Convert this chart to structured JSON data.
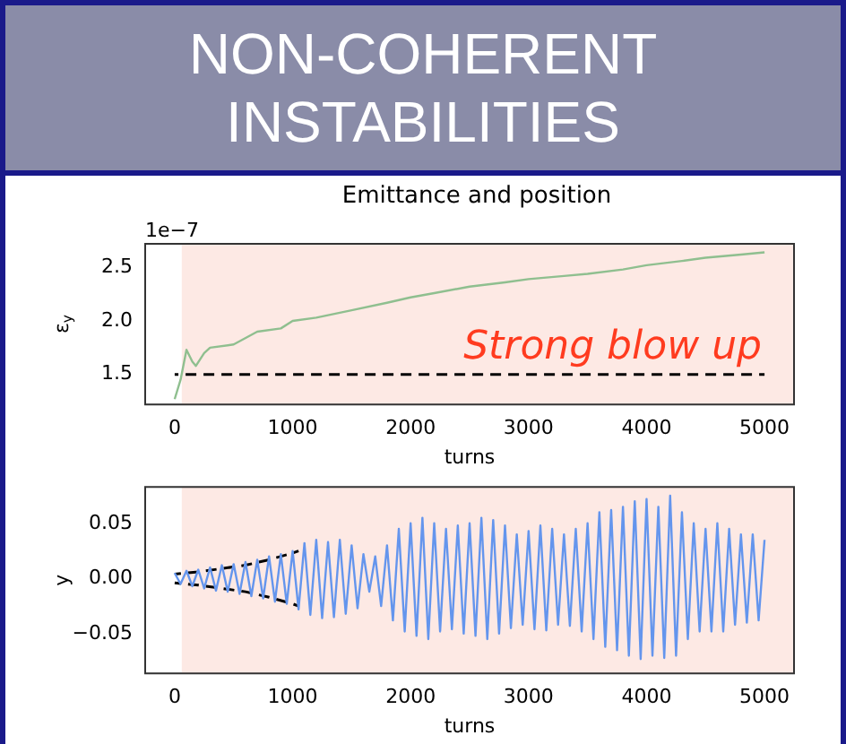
{
  "chart_data": [
    {
      "type": "line",
      "title": "NON-COHERENT INSTABILITIES",
      "subtitle": "Emittance and position",
      "xlabel": "turns",
      "ylabel": "ε$_{y}$",
      "annotations": [
        "1e−7",
        "Strong blow up"
      ],
      "marker": "none",
      "legend": false,
      "grid": false,
      "xlim": [
        -250,
        5250
      ],
      "xticks": [
        0,
        1000,
        2000,
        3000,
        4000,
        5000
      ],
      "ylim": [
        1.22,
        2.72
      ],
      "yticks": [
        {
          "value": 1.5,
          "label": "1.5"
        },
        {
          "value": 2.0,
          "label": "2.0"
        },
        {
          "value": 2.5,
          "label": "2.5"
        }
      ],
      "bands": [
        {
          "axis": "x",
          "from": 60,
          "to": 5250,
          "color": "#fde9e4"
        }
      ],
      "series": [
        {
          "color": "#8fbf8f",
          "x": [
            0,
            50,
            100,
            150,
            180,
            250,
            300,
            500,
            700,
            900,
            1000,
            1200,
            1500,
            1800,
            2000,
            2200,
            2500,
            2800,
            3000,
            3300,
            3500,
            3800,
            4000,
            4300,
            4500,
            4800,
            5000
          ],
          "values": [
            1.27,
            1.45,
            1.73,
            1.62,
            1.58,
            1.7,
            1.75,
            1.78,
            1.9,
            1.93,
            2.0,
            2.03,
            2.1,
            2.17,
            2.22,
            2.26,
            2.32,
            2.36,
            2.39,
            2.42,
            2.44,
            2.48,
            2.52,
            2.56,
            2.59,
            2.62,
            2.64
          ]
        },
        {
          "color": "#000000",
          "line_style": "dashed",
          "x": [
            0,
            5000
          ],
          "values": [
            1.5,
            1.5
          ]
        }
      ]
    },
    {
      "type": "line",
      "xlabel": "turns",
      "ylabel": "y",
      "marker": "none",
      "legend": false,
      "grid": false,
      "xlim": [
        -250,
        5250
      ],
      "xticks": [
        0,
        1000,
        2000,
        3000,
        4000,
        5000
      ],
      "ylim": [
        -0.086,
        0.083
      ],
      "yticks": [
        {
          "value": -0.05,
          "label": "−0.05"
        },
        {
          "value": 0,
          "label": "0.00"
        },
        {
          "value": 0.05,
          "label": "0.05"
        }
      ],
      "bands": [
        {
          "axis": "x",
          "from": 60,
          "to": 5250,
          "color": "#fde9e4"
        }
      ],
      "series": [
        {
          "color": "#6495ed",
          "x": [
            0,
            50,
            100,
            150,
            200,
            250,
            300,
            350,
            400,
            450,
            500,
            550,
            600,
            650,
            700,
            750,
            800,
            850,
            900,
            950,
            1000,
            1050,
            1100,
            1150,
            1200,
            1250,
            1300,
            1350,
            1400,
            1450,
            1500,
            1550,
            1600,
            1650,
            1700,
            1750,
            1800,
            1850,
            1900,
            1950,
            2000,
            2050,
            2100,
            2150,
            2200,
            2250,
            2300,
            2350,
            2400,
            2450,
            2500,
            2550,
            2600,
            2650,
            2700,
            2750,
            2800,
            2850,
            2900,
            2950,
            3000,
            3050,
            3100,
            3150,
            3200,
            3250,
            3300,
            3350,
            3400,
            3450,
            3500,
            3550,
            3600,
            3650,
            3700,
            3750,
            3800,
            3850,
            3900,
            3950,
            4000,
            4050,
            4100,
            4150,
            4200,
            4250,
            4300,
            4350,
            4400,
            4450,
            4500,
            4550,
            4600,
            4650,
            4700,
            4750,
            4800,
            4850,
            4900,
            4950,
            5000
          ],
          "values": [
            0.005,
            -0.005,
            0.007,
            -0.007,
            0.008,
            -0.009,
            0.01,
            -0.011,
            0.012,
            -0.012,
            0.013,
            -0.014,
            0.015,
            -0.016,
            0.017,
            -0.018,
            0.02,
            -0.021,
            0.022,
            -0.023,
            0.025,
            -0.028,
            0.032,
            -0.033,
            0.035,
            -0.036,
            0.033,
            -0.035,
            0.035,
            -0.032,
            0.03,
            -0.027,
            0.022,
            -0.012,
            0.02,
            -0.025,
            0.03,
            -0.038,
            0.045,
            -0.048,
            0.05,
            -0.052,
            0.055,
            -0.055,
            0.05,
            -0.048,
            0.045,
            -0.046,
            0.048,
            -0.05,
            0.05,
            -0.052,
            0.055,
            -0.055,
            0.053,
            -0.05,
            0.048,
            -0.045,
            0.04,
            -0.042,
            0.043,
            -0.046,
            0.048,
            -0.047,
            0.045,
            -0.042,
            0.04,
            -0.043,
            0.045,
            -0.048,
            0.05,
            -0.055,
            0.06,
            -0.062,
            0.062,
            -0.065,
            0.065,
            -0.07,
            0.07,
            -0.073,
            0.072,
            -0.07,
            0.065,
            -0.072,
            0.075,
            -0.07,
            0.06,
            -0.055,
            0.05,
            -0.048,
            0.045,
            -0.048,
            0.05,
            -0.048,
            0.045,
            -0.042,
            0.04,
            -0.04,
            0.04,
            -0.038,
            0.035
          ]
        },
        {
          "color": "#000000",
          "line_style": "dashed",
          "x": [
            0,
            200,
            400,
            600,
            800,
            1000,
            1050
          ],
          "values": [
            0.004,
            0.006,
            0.009,
            0.012,
            0.017,
            0.023,
            0.025
          ]
        },
        {
          "color": "#000000",
          "line_style": "dashed",
          "x": [
            0,
            200,
            400,
            600,
            800,
            1000,
            1050
          ],
          "values": [
            -0.004,
            -0.006,
            -0.009,
            -0.012,
            -0.017,
            -0.023,
            -0.025
          ]
        }
      ]
    }
  ]
}
